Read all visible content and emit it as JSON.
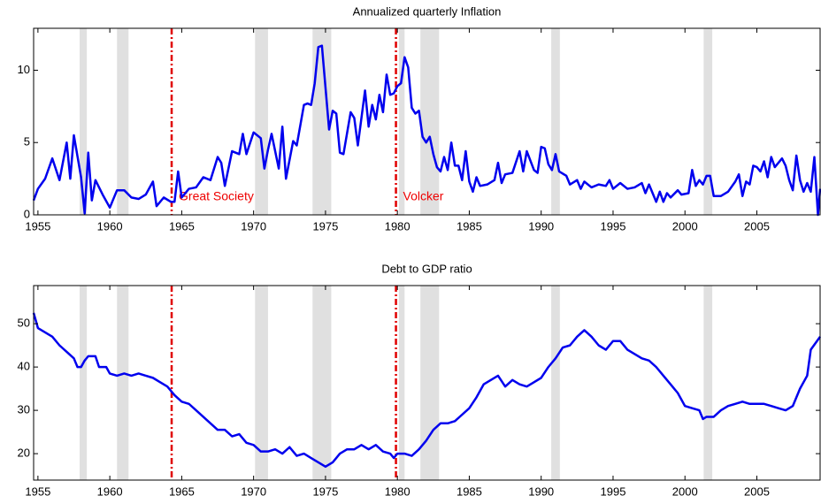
{
  "chart_data": [
    {
      "type": "line",
      "title": "Annualized quarterly Inflation",
      "xlim": [
        1954.7,
        2009.4
      ],
      "xticks": [
        1955,
        1960,
        1965,
        1970,
        1975,
        1980,
        1985,
        1990,
        1995,
        2000,
        2005
      ],
      "ylim": [
        0,
        12.9
      ],
      "yticks": [
        0,
        5,
        10
      ],
      "color": "#0000ee",
      "shade_color": "#e0e0e0",
      "vline_color": "#e00000",
      "shaded": [
        [
          1957.9,
          1958.4
        ],
        [
          1960.5,
          1961.3
        ],
        [
          1970.1,
          1971.0
        ],
        [
          1974.1,
          1975.4
        ],
        [
          1980.1,
          1980.5
        ],
        [
          1981.6,
          1982.9
        ],
        [
          1990.7,
          1991.3
        ],
        [
          2001.3,
          2001.9
        ]
      ],
      "vlines": [
        1964.3,
        1979.9
      ],
      "annotations": [
        "Great Society",
        "Volcker"
      ],
      "x": [
        1954.7,
        1955,
        1955.5,
        1956,
        1956.5,
        1957,
        1957.25,
        1957.5,
        1958,
        1958.25,
        1958.5,
        1958.75,
        1959,
        1959.5,
        1960,
        1960.5,
        1961,
        1961.5,
        1962,
        1962.5,
        1963,
        1963.25,
        1963.75,
        1964.25,
        1964.5,
        1964.75,
        1965,
        1965.5,
        1966,
        1966.5,
        1967,
        1967.5,
        1967.75,
        1968,
        1968.5,
        1969,
        1969.25,
        1969.5,
        1970,
        1970.5,
        1970.75,
        1971,
        1971.25,
        1971.75,
        1972,
        1972.25,
        1972.75,
        1973,
        1973.5,
        1973.75,
        1974,
        1974.25,
        1974.5,
        1974.75,
        1975.25,
        1975.5,
        1975.75,
        1976,
        1976.25,
        1976.75,
        1977,
        1977.25,
        1977.75,
        1978,
        1978.25,
        1978.5,
        1978.75,
        1979,
        1979.25,
        1979.5,
        1979.75,
        1980,
        1980.25,
        1980.5,
        1980.75,
        1981,
        1981.25,
        1981.5,
        1981.75,
        1982,
        1982.25,
        1982.5,
        1982.75,
        1983,
        1983.25,
        1983.5,
        1983.75,
        1984,
        1984.25,
        1984.5,
        1984.75,
        1985,
        1985.25,
        1985.5,
        1985.75,
        1986.25,
        1986.75,
        1987,
        1987.25,
        1987.5,
        1988,
        1988.5,
        1988.75,
        1989,
        1989.5,
        1989.75,
        1990,
        1990.25,
        1990.5,
        1990.75,
        1991,
        1991.25,
        1991.75,
        1992,
        1992.5,
        1992.75,
        1993,
        1993.5,
        1994,
        1994.5,
        1994.75,
        1995,
        1995.5,
        1996,
        1996.5,
        1997,
        1997.25,
        1997.5,
        1998,
        1998.25,
        1998.5,
        1998.75,
        1999,
        1999.5,
        1999.75,
        2000.25,
        2000.5,
        2000.75,
        2001,
        2001.25,
        2001.5,
        2001.75,
        2002,
        2002.5,
        2003,
        2003.5,
        2003.75,
        2004,
        2004.25,
        2004.5,
        2004.75,
        2005,
        2005.25,
        2005.5,
        2005.75,
        2006,
        2006.25,
        2006.75,
        2007,
        2007.25,
        2007.5,
        2007.75,
        2008,
        2008.25,
        2008.5,
        2008.75,
        2009,
        2009.25,
        2009.4
      ],
      "values": [
        1.0,
        1.8,
        2.5,
        3.9,
        2.4,
        5.0,
        2.5,
        5.5,
        2.6,
        0.1,
        4.3,
        1.0,
        2.4,
        1.4,
        0.5,
        1.7,
        1.7,
        1.2,
        1.1,
        1.4,
        2.3,
        0.6,
        1.2,
        0.9,
        0.9,
        3.0,
        1.2,
        1.8,
        1.9,
        2.6,
        2.4,
        4.0,
        3.6,
        2.0,
        4.4,
        4.2,
        5.6,
        4.2,
        5.7,
        5.3,
        3.2,
        4.5,
        5.6,
        3.2,
        6.1,
        2.5,
        5.1,
        4.8,
        7.6,
        7.7,
        7.6,
        9.1,
        11.6,
        11.7,
        5.9,
        7.2,
        7.0,
        4.3,
        4.2,
        7.1,
        6.7,
        4.8,
        8.6,
        6.1,
        7.6,
        6.6,
        8.3,
        7.1,
        9.7,
        8.3,
        8.4,
        8.9,
        9.1,
        10.9,
        10.2,
        7.4,
        7.0,
        7.2,
        5.4,
        5.0,
        5.4,
        4.2,
        3.3,
        3.0,
        4.0,
        3.1,
        5.0,
        3.4,
        3.4,
        2.4,
        4.4,
        2.3,
        1.6,
        2.6,
        2.0,
        2.1,
        2.4,
        3.6,
        2.2,
        2.8,
        2.9,
        4.4,
        3.0,
        4.4,
        3.1,
        2.9,
        4.7,
        4.6,
        3.5,
        3.1,
        4.2,
        3.0,
        2.7,
        2.1,
        2.4,
        1.8,
        2.3,
        1.9,
        2.1,
        2.0,
        2.4,
        1.8,
        2.2,
        1.8,
        1.9,
        2.2,
        1.5,
        2.1,
        0.9,
        1.6,
        0.9,
        1.5,
        1.2,
        1.7,
        1.4,
        1.5,
        3.1,
        2.0,
        2.4,
        2.1,
        2.7,
        2.7,
        1.3,
        1.3,
        1.6,
        2.3,
        2.8,
        1.3,
        2.3,
        2.1,
        3.4,
        3.3,
        3.0,
        3.7,
        2.6,
        4.0,
        3.3,
        3.9,
        3.4,
        2.4,
        1.7,
        4.1,
        2.4,
        1.6,
        2.2,
        1.6,
        4.0,
        0.0,
        1.8
      ]
    },
    {
      "type": "line",
      "title": "Debt to GDP ratio",
      "xlim": [
        1954.7,
        2009.4
      ],
      "xticks": [
        1955,
        1960,
        1965,
        1970,
        1975,
        1980,
        1985,
        1990,
        1995,
        2000,
        2005
      ],
      "ylim": [
        13.9,
        58.8
      ],
      "yticks": [
        20,
        30,
        40,
        50
      ],
      "color": "#0000ee",
      "shade_color": "#e0e0e0",
      "vline_color": "#e00000",
      "shaded": [
        [
          1957.9,
          1958.4
        ],
        [
          1960.5,
          1961.3
        ],
        [
          1970.1,
          1971.0
        ],
        [
          1974.1,
          1975.4
        ],
        [
          1980.1,
          1980.5
        ],
        [
          1981.6,
          1982.9
        ],
        [
          1990.7,
          1991.3
        ],
        [
          2001.3,
          2001.9
        ]
      ],
      "vlines": [
        1964.3,
        1979.9
      ],
      "x": [
        1954.7,
        1955,
        1955.5,
        1956,
        1956.5,
        1957,
        1957.5,
        1957.75,
        1958,
        1958.25,
        1958.5,
        1959,
        1959.25,
        1959.75,
        1960,
        1960.5,
        1961,
        1961.5,
        1962,
        1962.5,
        1963,
        1963.5,
        1964,
        1964.5,
        1965,
        1965.5,
        1966,
        1966.5,
        1967,
        1967.5,
        1968,
        1968.5,
        1969,
        1969.5,
        1970,
        1970.5,
        1971,
        1971.5,
        1972,
        1972.5,
        1973,
        1973.5,
        1974,
        1974.5,
        1975,
        1975.5,
        1976,
        1976.5,
        1977,
        1977.5,
        1978,
        1978.5,
        1979,
        1979.5,
        1979.75,
        1980,
        1980.5,
        1981,
        1981.5,
        1982,
        1982.5,
        1983,
        1983.5,
        1984,
        1984.5,
        1985,
        1985.5,
        1986,
        1986.5,
        1987,
        1987.5,
        1988,
        1988.5,
        1989,
        1989.5,
        1990,
        1990.5,
        1991,
        1991.5,
        1992,
        1992.5,
        1993,
        1993.5,
        1994,
        1994.5,
        1995,
        1995.5,
        1996,
        1996.5,
        1997,
        1997.5,
        1998,
        1998.5,
        1999,
        1999.5,
        2000,
        2000.5,
        2001,
        2001.25,
        2001.5,
        2002,
        2002.5,
        2003,
        2003.5,
        2004,
        2004.5,
        2005,
        2005.5,
        2006,
        2006.5,
        2007,
        2007.5,
        2008,
        2008.5,
        2008.75,
        2009.4
      ],
      "values": [
        52.5,
        49,
        48,
        47,
        45,
        43.5,
        42,
        40,
        40,
        41.5,
        42.5,
        42.5,
        40,
        40,
        38.5,
        38,
        38.5,
        38,
        38.5,
        38,
        37.5,
        36.5,
        35.5,
        33.5,
        32,
        31.5,
        30,
        28.5,
        27,
        25.5,
        25.5,
        24,
        24.5,
        22.5,
        22,
        20.5,
        20.5,
        21,
        20,
        21.5,
        19.5,
        20,
        19,
        18,
        17,
        18,
        20,
        21,
        21,
        22,
        21,
        22,
        20.5,
        20,
        19,
        20,
        20,
        19.5,
        21,
        23,
        25.5,
        27,
        27,
        27.5,
        29,
        30.5,
        33,
        36,
        37,
        38,
        35.5,
        37,
        36,
        35.5,
        36.5,
        37.5,
        40,
        42,
        44.5,
        45,
        47,
        48.5,
        47,
        45,
        44,
        46,
        46,
        44,
        43,
        42,
        41.5,
        40,
        38,
        36,
        34,
        31,
        30.5,
        30,
        28,
        28.5,
        28.5,
        30,
        31,
        31.5,
        32,
        31.5,
        31.5,
        31.5,
        31,
        30.5,
        30,
        31,
        35,
        38,
        44,
        47
      ]
    }
  ]
}
